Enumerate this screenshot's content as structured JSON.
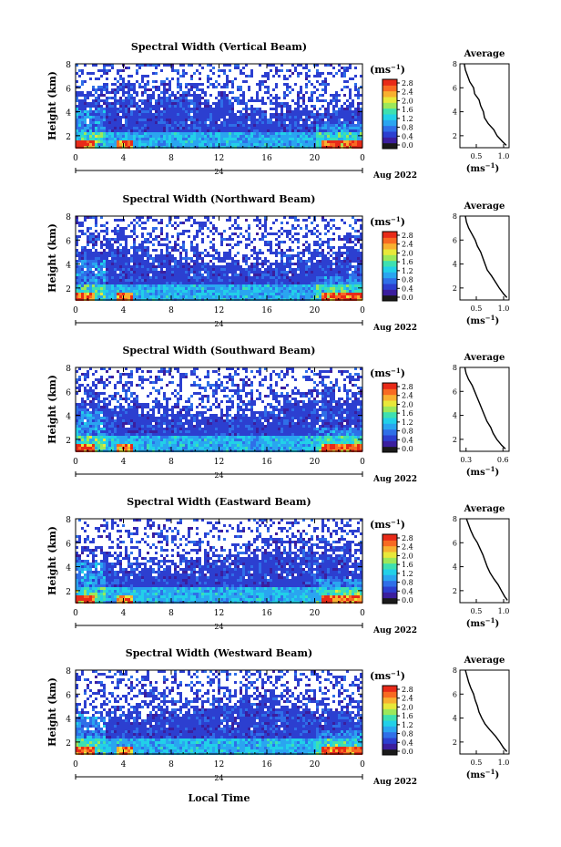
{
  "xlabel": "Local Time",
  "date_label": "Aug 2022",
  "x_ticks": [
    "0",
    "4",
    "8",
    "12",
    "16",
    "20",
    "0"
  ],
  "sub_tick": "24",
  "y_ticks": [
    "2",
    "4",
    "6",
    "8"
  ],
  "ylabel": "Height (km)",
  "unit_label": "(ms",
  "unit_sup": "−1",
  "avg_title": "Average",
  "colorbar_ticks": [
    "0.0",
    "0.4",
    "0.8",
    "1.2",
    "1.6",
    "2.0",
    "2.4",
    "2.8"
  ],
  "colormap": [
    "#1a1a1a",
    "#3b1e9e",
    "#2c3fd0",
    "#2f6fe8",
    "#2aa5f0",
    "#22d0e8",
    "#3ee0b0",
    "#9ce85a",
    "#e8e83a",
    "#f8b030",
    "#f86a22",
    "#e82a18"
  ],
  "chart_data": [
    {
      "type": "heatmap",
      "title": "Spectral Width (Vertical Beam)",
      "xlabel": "",
      "ylabel": "Height (km)",
      "xlim": [
        0,
        24
      ],
      "ylim": [
        1,
        8
      ],
      "colorbar": {
        "range": [
          0,
          2.8
        ]
      },
      "average_profile": {
        "title": "Average",
        "x_ticks": [
          "0.5",
          "1.0"
        ],
        "xlim": [
          0.2,
          1.1
        ],
        "xlabel": "(ms−1)",
        "height": [
          8.0,
          7.5,
          7.0,
          6.5,
          6.0,
          5.5,
          5.0,
          4.5,
          4.0,
          3.5,
          3.0,
          2.5,
          2.0,
          1.5,
          1.2
        ],
        "value": [
          0.28,
          0.3,
          0.34,
          0.38,
          0.45,
          0.47,
          0.55,
          0.58,
          0.63,
          0.65,
          0.72,
          0.82,
          0.88,
          0.98,
          1.05
        ]
      }
    },
    {
      "type": "heatmap",
      "title": "Spectral Width (Northward Beam)",
      "xlabel": "",
      "ylabel": "Height (km)",
      "xlim": [
        0,
        24
      ],
      "ylim": [
        1,
        8
      ],
      "colorbar": {
        "range": [
          0,
          2.8
        ]
      },
      "average_profile": {
        "title": "Average",
        "x_ticks": [
          "0.5",
          "1.0"
        ],
        "xlim": [
          0.2,
          1.1
        ],
        "xlabel": "(ms−1)",
        "height": [
          8.0,
          7.5,
          7.0,
          6.5,
          6.0,
          5.5,
          5.0,
          4.5,
          4.0,
          3.5,
          3.0,
          2.5,
          2.0,
          1.5,
          1.2
        ],
        "value": [
          0.3,
          0.32,
          0.36,
          0.42,
          0.48,
          0.52,
          0.58,
          0.62,
          0.66,
          0.7,
          0.78,
          0.85,
          0.92,
          1.0,
          1.06
        ]
      }
    },
    {
      "type": "heatmap",
      "title": "Spectral Width (Southward Beam)",
      "xlabel": "",
      "ylabel": "Height (km)",
      "xlim": [
        0,
        24
      ],
      "ylim": [
        1,
        8
      ],
      "colorbar": {
        "range": [
          0,
          2.8
        ]
      },
      "average_profile": {
        "title": "Average",
        "x_ticks": [
          "0.3",
          "0.6"
        ],
        "xlim": [
          0.25,
          0.65
        ],
        "xlabel": "(ms−1)",
        "height": [
          8.0,
          7.5,
          7.0,
          6.5,
          6.0,
          5.5,
          5.0,
          4.5,
          4.0,
          3.5,
          3.0,
          2.5,
          2.0,
          1.5,
          1.2
        ],
        "value": [
          0.29,
          0.3,
          0.32,
          0.35,
          0.37,
          0.39,
          0.41,
          0.43,
          0.45,
          0.47,
          0.5,
          0.52,
          0.55,
          0.59,
          0.62
        ]
      }
    },
    {
      "type": "heatmap",
      "title": "Spectral Width (Eastward Beam)",
      "xlabel": "",
      "ylabel": "Height (km)",
      "xlim": [
        0,
        24
      ],
      "ylim": [
        1,
        8
      ],
      "colorbar": {
        "range": [
          0,
          2.8
        ]
      },
      "average_profile": {
        "title": "Average",
        "x_ticks": [
          "0.5",
          "1.0"
        ],
        "xlim": [
          0.2,
          1.1
        ],
        "xlabel": "(ms−1)",
        "height": [
          8.0,
          7.5,
          7.0,
          6.5,
          6.0,
          5.5,
          5.0,
          4.5,
          4.0,
          3.5,
          3.0,
          2.5,
          2.0,
          1.5,
          1.2
        ],
        "value": [
          0.32,
          0.36,
          0.4,
          0.45,
          0.52,
          0.57,
          0.62,
          0.66,
          0.7,
          0.75,
          0.82,
          0.9,
          0.96,
          1.02,
          1.07
        ]
      }
    },
    {
      "type": "heatmap",
      "title": "Spectral Width (Westward Beam)",
      "xlabel": "Local Time",
      "ylabel": "Height (km)",
      "xlim": [
        0,
        24
      ],
      "ylim": [
        1,
        8
      ],
      "colorbar": {
        "range": [
          0,
          2.8
        ]
      },
      "average_profile": {
        "title": "Average",
        "x_ticks": [
          "0.5",
          "1.0"
        ],
        "xlim": [
          0.2,
          1.1
        ],
        "xlabel": "(ms−1)",
        "height": [
          8.0,
          7.5,
          7.0,
          6.5,
          6.0,
          5.5,
          5.0,
          4.5,
          4.0,
          3.5,
          3.0,
          2.5,
          2.0,
          1.5,
          1.2
        ],
        "value": [
          0.3,
          0.33,
          0.36,
          0.4,
          0.45,
          0.48,
          0.52,
          0.55,
          0.6,
          0.66,
          0.75,
          0.85,
          0.93,
          1.0,
          1.06
        ]
      }
    }
  ]
}
